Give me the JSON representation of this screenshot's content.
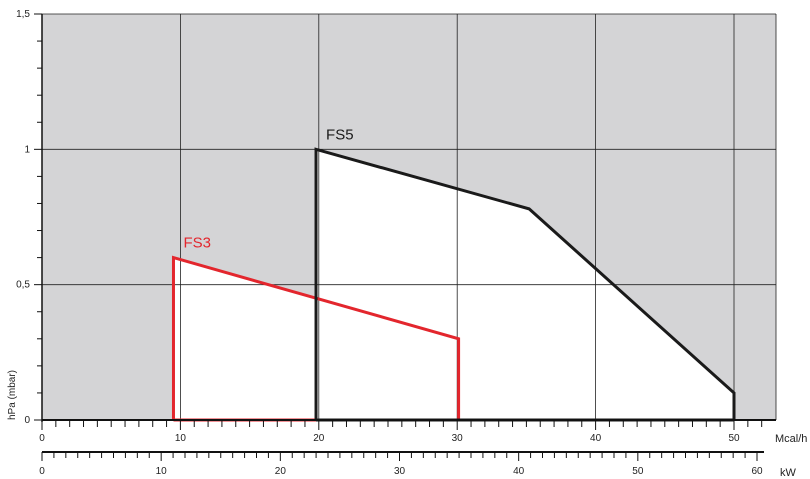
{
  "chart_data": {
    "type": "area",
    "title": "",
    "ylabel": "hPa (mbar)",
    "ylim": [
      0,
      1.5
    ],
    "y_ticks": [
      {
        "value": 0,
        "label": "0"
      },
      {
        "value": 0.5,
        "label": "0,5"
      },
      {
        "value": 1,
        "label": "1"
      },
      {
        "value": 1.5,
        "label": "1,5"
      }
    ],
    "grid": true,
    "x_axis_primary": {
      "unit": "Mcal/h",
      "range": [
        0,
        52.5
      ],
      "ticks": [
        {
          "value": 0,
          "label": "0"
        },
        {
          "value": 10,
          "label": "10"
        },
        {
          "value": 20,
          "label": "20"
        },
        {
          "value": 30,
          "label": "30"
        },
        {
          "value": 40,
          "label": "40"
        },
        {
          "value": 50,
          "label": "50"
        }
      ]
    },
    "x_axis_secondary": {
      "unit": "kW",
      "range": [
        0,
        61
      ],
      "ticks": [
        {
          "value": 0,
          "label": "0"
        },
        {
          "value": 10,
          "label": "10"
        },
        {
          "value": 20,
          "label": "20"
        },
        {
          "value": 30,
          "label": "30"
        },
        {
          "value": 40,
          "label": "40"
        },
        {
          "value": 50,
          "label": "50"
        },
        {
          "value": 60,
          "label": "60"
        }
      ]
    },
    "series": [
      {
        "name": "FS3",
        "color": "#e3262d",
        "points": [
          [
            9.5,
            0
          ],
          [
            9.5,
            0.6
          ],
          [
            30.1,
            0.3
          ],
          [
            30.1,
            0
          ]
        ]
      },
      {
        "name": "FS5",
        "color": "#1a1a1a",
        "points": [
          [
            19.8,
            0
          ],
          [
            19.8,
            1.0
          ],
          [
            35.2,
            0.78
          ],
          [
            50,
            0.1
          ],
          [
            50,
            0
          ]
        ]
      }
    ],
    "colors": {
      "background": "#d4d4d6",
      "envelope_fill": "#ffffff",
      "grid": "#222222"
    }
  }
}
